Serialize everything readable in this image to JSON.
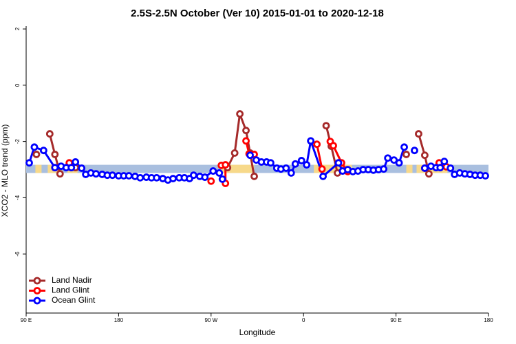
{
  "chart_data": {
    "type": "line",
    "title": "2.5S-2.5N October (Ver 10)   2015-01-01 to 2020-12-18",
    "xlabel": "Longitude",
    "ylabel": "XCO2 - MLO trend (ppm)",
    "xlim": [
      90,
      540
    ],
    "xticks": [
      {
        "value": 90,
        "label": "90 E"
      },
      {
        "value": 180,
        "label": "180"
      },
      {
        "value": 270,
        "label": "90 W"
      },
      {
        "value": 360,
        "label": "0"
      },
      {
        "value": 450,
        "label": "90 E"
      },
      {
        "value": 540,
        "label": "180"
      }
    ],
    "ylim": [
      -8.1,
      2.1
    ],
    "yticks": [
      2,
      0,
      -2,
      -4,
      -6
    ],
    "legend": "bottom-left",
    "band": {
      "ylim": [
        -3.12,
        -2.83
      ],
      "color": "#a9bfdf",
      "land_color": "#f7d98a",
      "land_x": [
        [
          99,
          105
        ],
        [
          111,
          123
        ],
        [
          130,
          140
        ],
        [
          280,
          312
        ],
        [
          370,
          407
        ],
        [
          460,
          466
        ],
        [
          470,
          500
        ]
      ]
    },
    "series": [
      {
        "name": "Land Nadir",
        "color": "#a52a2a",
        "x": [
          100,
          null,
          113,
          118,
          123,
          null,
          138,
          null,
          286,
          293,
          298,
          304,
          308,
          312,
          null,
          382,
          387,
          393,
          null,
          460,
          null,
          472,
          478,
          482
        ],
        "values": [
          -2.46,
          null,
          -1.73,
          -2.46,
          -3.15,
          null,
          -2.93,
          null,
          -2.93,
          -2.41,
          -1.02,
          -1.61,
          -2.41,
          -3.24,
          null,
          -1.44,
          -2.17,
          -3.12,
          null,
          -2.46,
          null,
          -1.73,
          -2.49,
          -3.15
        ]
      },
      {
        "name": "Land Glint",
        "color": "#ff0000",
        "x": [
          118,
          null,
          132,
          null,
          270,
          null,
          280,
          284,
          284,
          null,
          304,
          307,
          312,
          null,
          373,
          378,
          null,
          386,
          389,
          397,
          403,
          null,
          478,
          null,
          492,
          499
        ],
        "values": [
          -2.93,
          null,
          -2.76,
          null,
          -3.41,
          null,
          -2.85,
          -2.83,
          -3.49,
          null,
          -1.98,
          -2.44,
          -2.46,
          null,
          -2.1,
          -2.98,
          null,
          -2.0,
          -2.15,
          -2.76,
          -3.07,
          null,
          -2.95,
          null,
          -2.76,
          -2.9
        ]
      },
      {
        "name": "Ocean Glint",
        "color": "#0000ff",
        "x": [
          93,
          98,
          107,
          118,
          124,
          129,
          134,
          138,
          144,
          148,
          153,
          158,
          164,
          169,
          174,
          180,
          185,
          190,
          196,
          201,
          207,
          212,
          217,
          223,
          228,
          233,
          239,
          244,
          249,
          253,
          259,
          264,
          272,
          278,
          281,
          null,
          308,
          314,
          319,
          324,
          328,
          334,
          338,
          343,
          348,
          352,
          358,
          363,
          367,
          379,
          394,
          398,
          403,
          408,
          413,
          418,
          423,
          428,
          433,
          438,
          442,
          448,
          453,
          458,
          null,
          468,
          null,
          478,
          484,
          489,
          493,
          497,
          503,
          507,
          512,
          517,
          522,
          527,
          532,
          537
        ],
        "values": [
          -2.76,
          -2.2,
          -2.32,
          -2.93,
          -2.88,
          -2.93,
          -2.93,
          -2.73,
          -2.95,
          -3.17,
          -3.12,
          -3.15,
          -3.17,
          -3.2,
          -3.2,
          -3.22,
          -3.22,
          -3.22,
          -3.24,
          -3.29,
          -3.27,
          -3.29,
          -3.29,
          -3.32,
          -3.37,
          -3.32,
          -3.29,
          -3.29,
          -3.32,
          -3.2,
          -3.24,
          -3.27,
          -3.05,
          -3.12,
          -3.34,
          null,
          -2.49,
          -2.66,
          -2.73,
          -2.73,
          -2.76,
          -2.95,
          -2.98,
          -2.95,
          -3.12,
          -2.8,
          -2.68,
          -2.83,
          -1.98,
          -3.24,
          -2.76,
          -3.05,
          -3.0,
          -3.07,
          -3.05,
          -3.0,
          -3.0,
          -3.02,
          -3.0,
          -2.98,
          -2.59,
          -2.66,
          -2.76,
          -2.2,
          null,
          -2.32,
          null,
          -2.95,
          -2.88,
          -2.93,
          -2.93,
          -2.71,
          -2.95,
          -3.17,
          -3.12,
          -3.15,
          -3.17,
          -3.2,
          -3.2,
          -3.22
        ]
      }
    ]
  }
}
